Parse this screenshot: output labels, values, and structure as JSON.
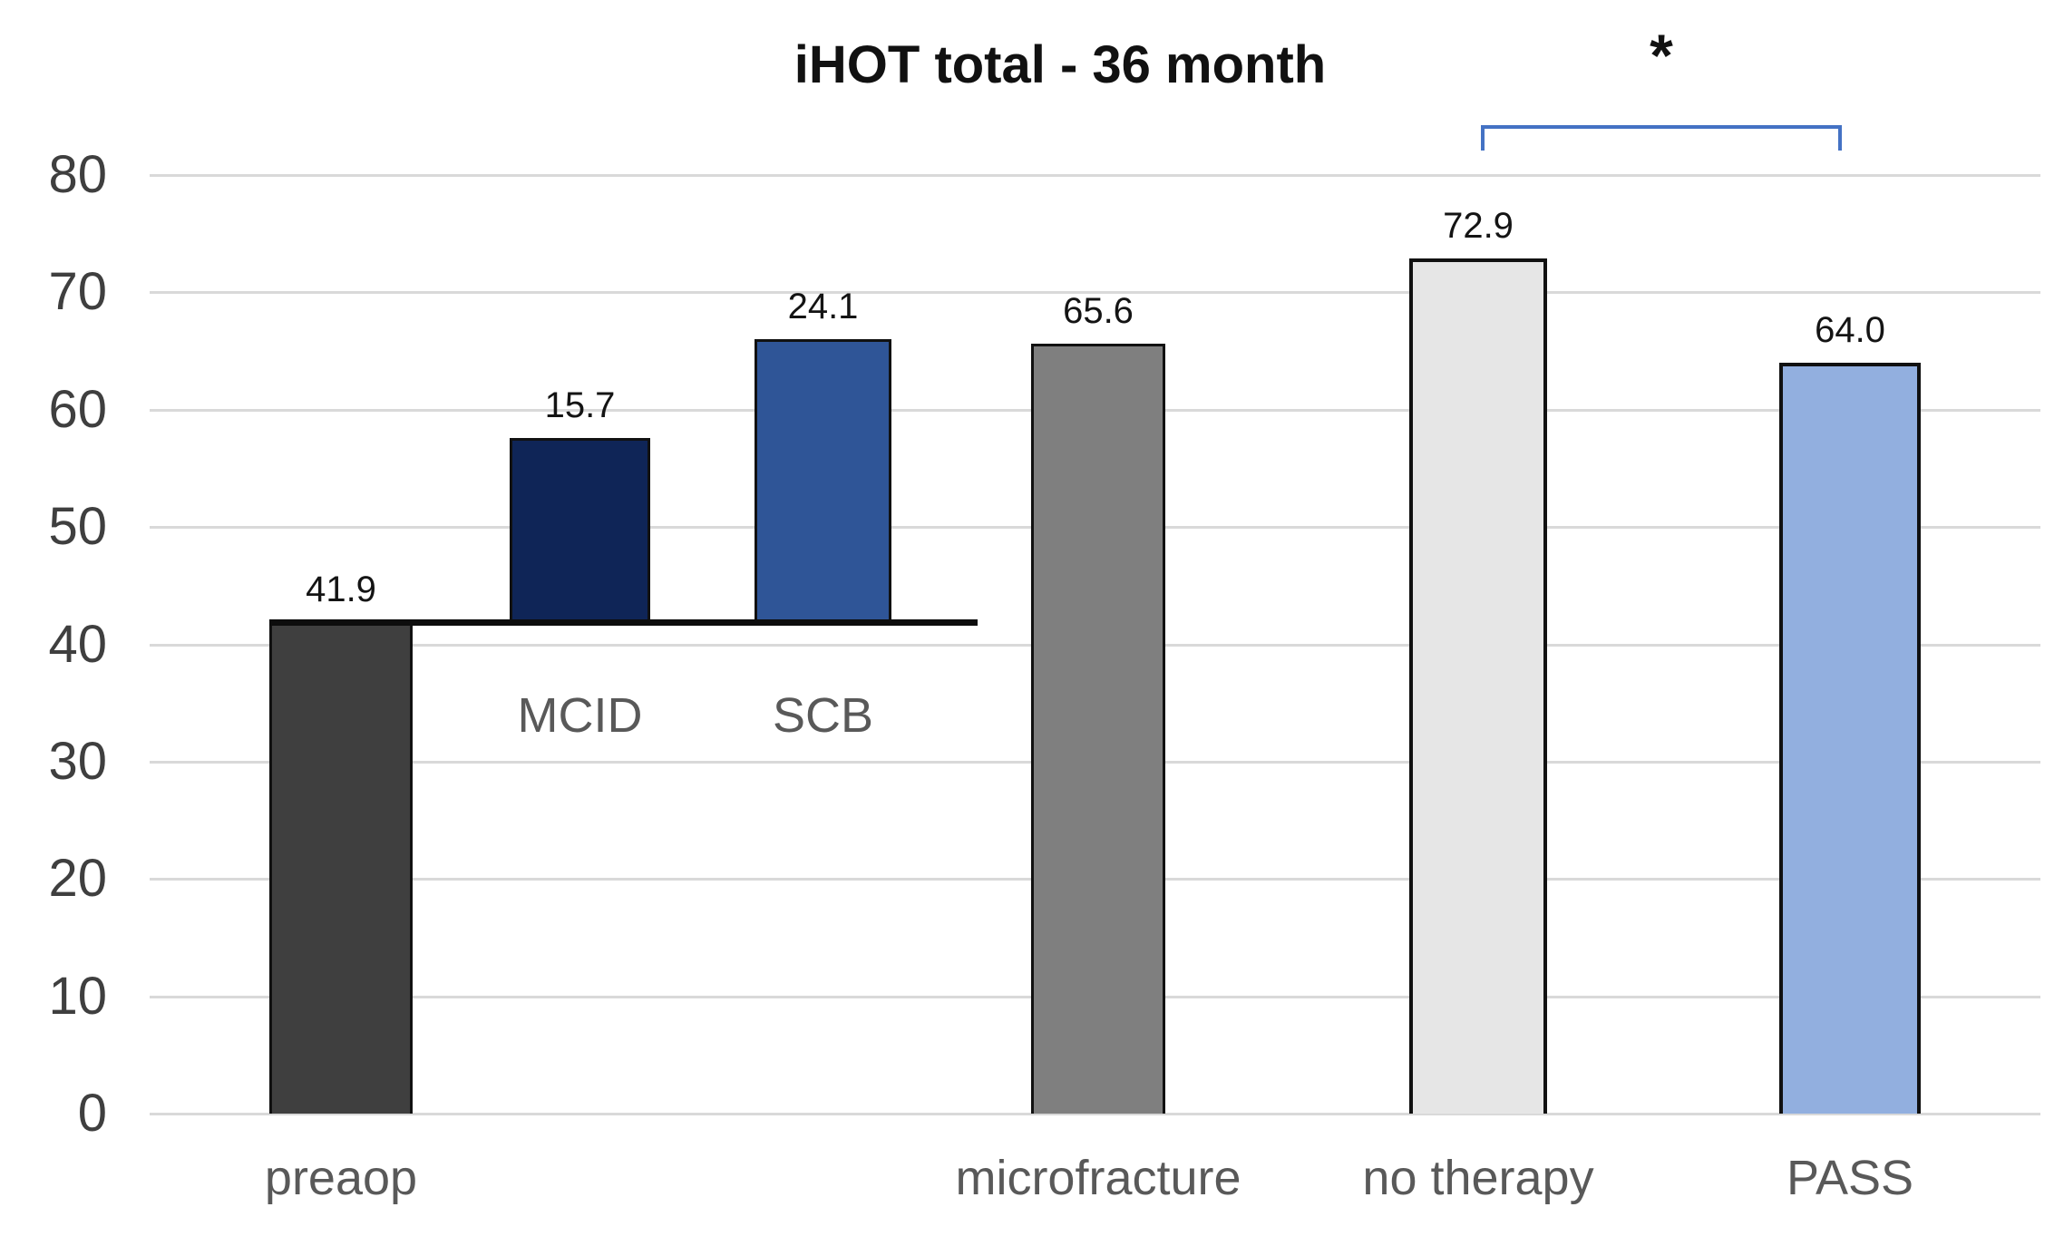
{
  "title": "iHOT total - 36 month",
  "chart_data": {
    "type": "bar",
    "title": "iHOT total - 36 month",
    "xlabel": "",
    "ylabel": "",
    "ylim": [
      0,
      80
    ],
    "ytick_step": 10,
    "yticks": [
      "0",
      "10",
      "20",
      "30",
      "40",
      "50",
      "60",
      "70",
      "80"
    ],
    "grid": true,
    "gridline_color": "#d9d9d9",
    "bars": [
      {
        "name": "preaop",
        "value": 41.9,
        "value_label": "41.9",
        "base": 0,
        "axis_label": "preaop",
        "fill": "#3f3f3f"
      },
      {
        "name": "MCID",
        "value": 15.7,
        "value_label": "15.7",
        "base": 41.9,
        "float_label": "MCID",
        "fill": "#0f2557"
      },
      {
        "name": "SCB",
        "value": 24.1,
        "value_label": "24.1",
        "base": 41.9,
        "float_label": "SCB",
        "fill": "#2f5597"
      },
      {
        "name": "microfracture",
        "value": 65.6,
        "value_label": "65.6",
        "base": 0,
        "axis_label": "microfracture",
        "fill": "#7f7f7f"
      },
      {
        "name": "no therapy",
        "value": 72.9,
        "value_label": "72.9",
        "base": 0,
        "axis_label": "no therapy",
        "fill": "#e6e6e6"
      },
      {
        "name": "PASS",
        "value": 64.0,
        "value_label": "64.0",
        "base": 0,
        "axis_label": "PASS",
        "fill": "#92afdf"
      }
    ],
    "annotations": {
      "baseline_value": 41.9,
      "baseline_color": "#0d0d0d",
      "significance_pair": [
        "no therapy",
        "PASS"
      ],
      "significance_symbol": "*",
      "bracket_color": "#4472c4"
    }
  }
}
